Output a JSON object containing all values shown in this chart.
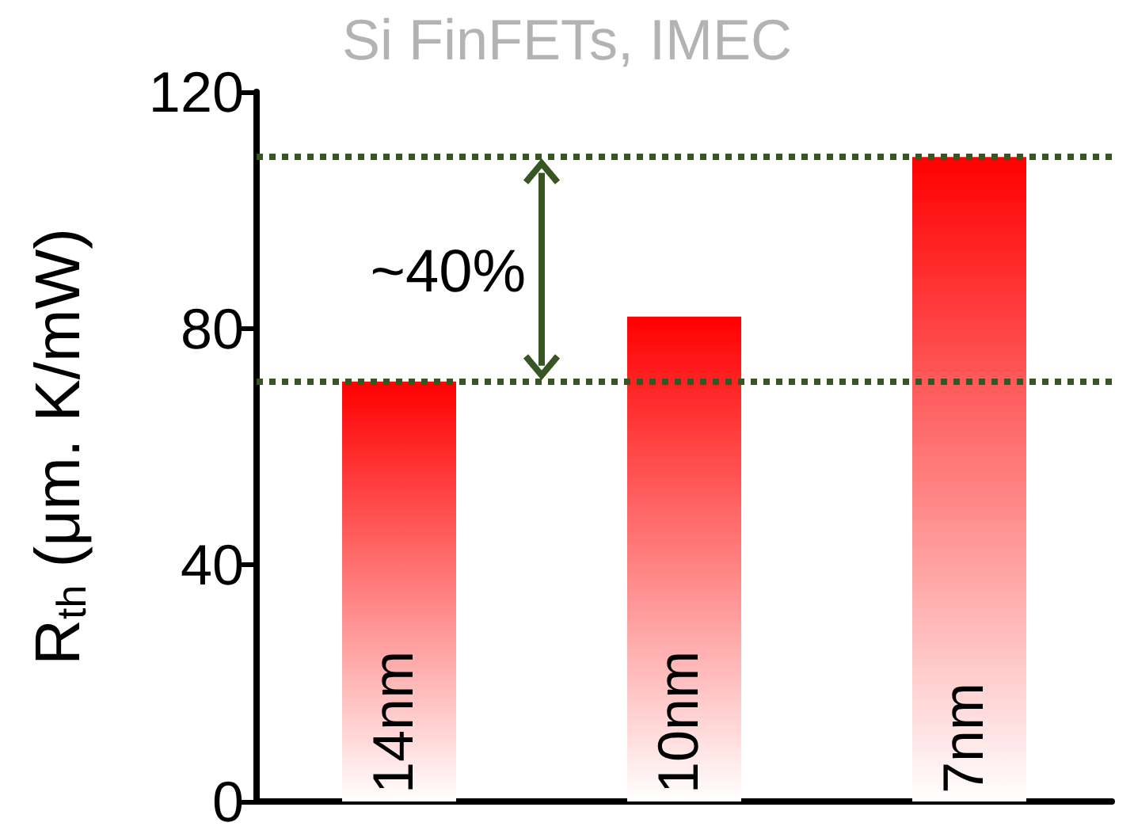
{
  "chart_data": {
    "type": "bar",
    "title": "Si FinFETs, IMEC",
    "ylabel": "R$_{th}$ (μm. K/mW)",
    "categories": [
      "14nm",
      "10nm",
      "7nm"
    ],
    "values": [
      71,
      82,
      109
    ],
    "color": "#ff0000",
    "ylim": [
      0,
      120
    ],
    "yticks": [
      0,
      40,
      80,
      120
    ],
    "grid": false,
    "ref_lines": [
      {
        "axis": "y",
        "value": 109,
        "color": "#375623",
        "line_style": "dotted"
      },
      {
        "axis": "y",
        "value": 71,
        "color": "#375623",
        "line_style": "dotted"
      }
    ],
    "annotations": [
      "~40%"
    ]
  }
}
